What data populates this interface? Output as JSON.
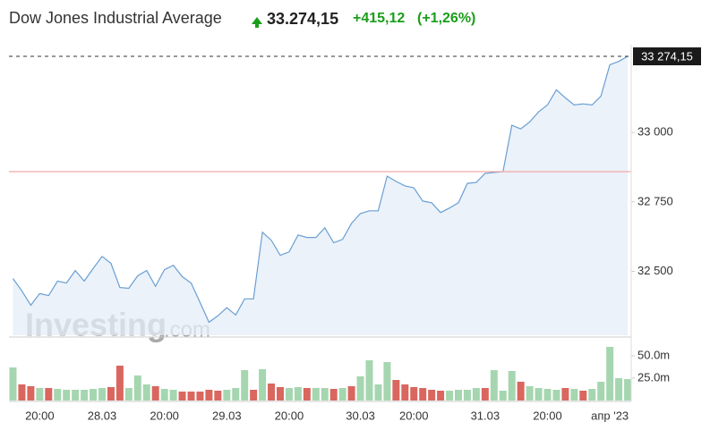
{
  "chart_data": {
    "type": "price-volume",
    "title": "Dow Jones Industrial Average",
    "last_price_text": "33.274,15",
    "change_text": "+415,12",
    "change_pct_text": "(+1,26%)",
    "price_label": "33 274,15",
    "watermark": {
      "main": "Investing",
      "suffix": ".com"
    },
    "line_color": "#6a9fd4",
    "area_color": "#e4edf7",
    "previous_close": 32859.03,
    "previous_close_color": "#f2a7a7",
    "categories": [
      null,
      null,
      null,
      "20:00",
      null,
      null,
      null,
      null,
      null,
      null,
      "28.03",
      null,
      null,
      null,
      null,
      null,
      null,
      "20:00",
      null,
      null,
      null,
      null,
      null,
      null,
      "29.03",
      null,
      null,
      null,
      null,
      null,
      null,
      "20:00",
      null,
      null,
      null,
      null,
      null,
      null,
      null,
      "30.03",
      null,
      null,
      null,
      null,
      null,
      "20:00",
      null,
      null,
      null,
      null,
      null,
      null,
      null,
      "31.03",
      null,
      null,
      null,
      null,
      null,
      null,
      "20:00",
      null,
      null,
      null,
      null,
      null,
      null,
      "апр '23",
      null,
      null
    ],
    "values": [
      32474,
      32430,
      32378,
      32420,
      32413,
      32465,
      32458,
      32503,
      32465,
      32510,
      32554,
      32529,
      32442,
      32439,
      32484,
      32503,
      32446,
      32506,
      32522,
      32481,
      32458,
      32388,
      32317,
      32340,
      32369,
      32343,
      32401,
      32401,
      32641,
      32612,
      32558,
      32570,
      32631,
      32622,
      32622,
      32657,
      32603,
      32615,
      32673,
      32708,
      32718,
      32718,
      32843,
      32824,
      32808,
      32801,
      32753,
      32747,
      32712,
      32728,
      32747,
      32817,
      32820,
      32853,
      32856,
      32859,
      33026,
      33013,
      33038,
      33074,
      33099,
      33154,
      33125,
      33099,
      33103,
      33099,
      33131,
      33244,
      33256,
      33274.15
    ],
    "ylim": [
      32270,
      33300
    ],
    "yticks": [
      {
        "value": 32500,
        "label": "32 500"
      },
      {
        "value": 32750,
        "label": "32 750"
      },
      {
        "value": 33000,
        "label": "33 000"
      }
    ],
    "volume": [
      37,
      18,
      16,
      14,
      14,
      13,
      12,
      12,
      12,
      13,
      14,
      15,
      39,
      14,
      28,
      18,
      16,
      13,
      12,
      10,
      10,
      10,
      12,
      11,
      12,
      14,
      34,
      12,
      35,
      19,
      15,
      14,
      15,
      14,
      14,
      14,
      13,
      14,
      16,
      27,
      45,
      18,
      43,
      23,
      18,
      15,
      14,
      12,
      11,
      11,
      12,
      12,
      14,
      14,
      34,
      11,
      33,
      21,
      16,
      14,
      13,
      12,
      14,
      13,
      11,
      13,
      21,
      60,
      25,
      24
    ],
    "volume_direction": [
      "up",
      "down",
      "down",
      "up",
      "down",
      "up",
      "up",
      "up",
      "up",
      "up",
      "up",
      "down",
      "down",
      "up",
      "up",
      "up",
      "down",
      "up",
      "up",
      "down",
      "down",
      "down",
      "down",
      "down",
      "up",
      "up",
      "up",
      "down",
      "up",
      "down",
      "down",
      "up",
      "up",
      "down",
      "up",
      "up",
      "down",
      "up",
      "down",
      "up",
      "up",
      "up",
      "up",
      "down",
      "down",
      "down",
      "down",
      "down",
      "down",
      "up",
      "up",
      "up",
      "up",
      "down",
      "up",
      "up",
      "up",
      "down",
      "up",
      "up",
      "up",
      "up",
      "down",
      "up",
      "down",
      "up",
      "up",
      "up",
      "up",
      "up"
    ],
    "up_color": "#a5d6b0",
    "down_color": "#d9675f",
    "volume_ylim": [
      0,
      68
    ],
    "volume_yticks": [
      {
        "value": 25,
        "label": "25.0m"
      },
      {
        "value": 50,
        "label": "50.0m"
      }
    ]
  }
}
